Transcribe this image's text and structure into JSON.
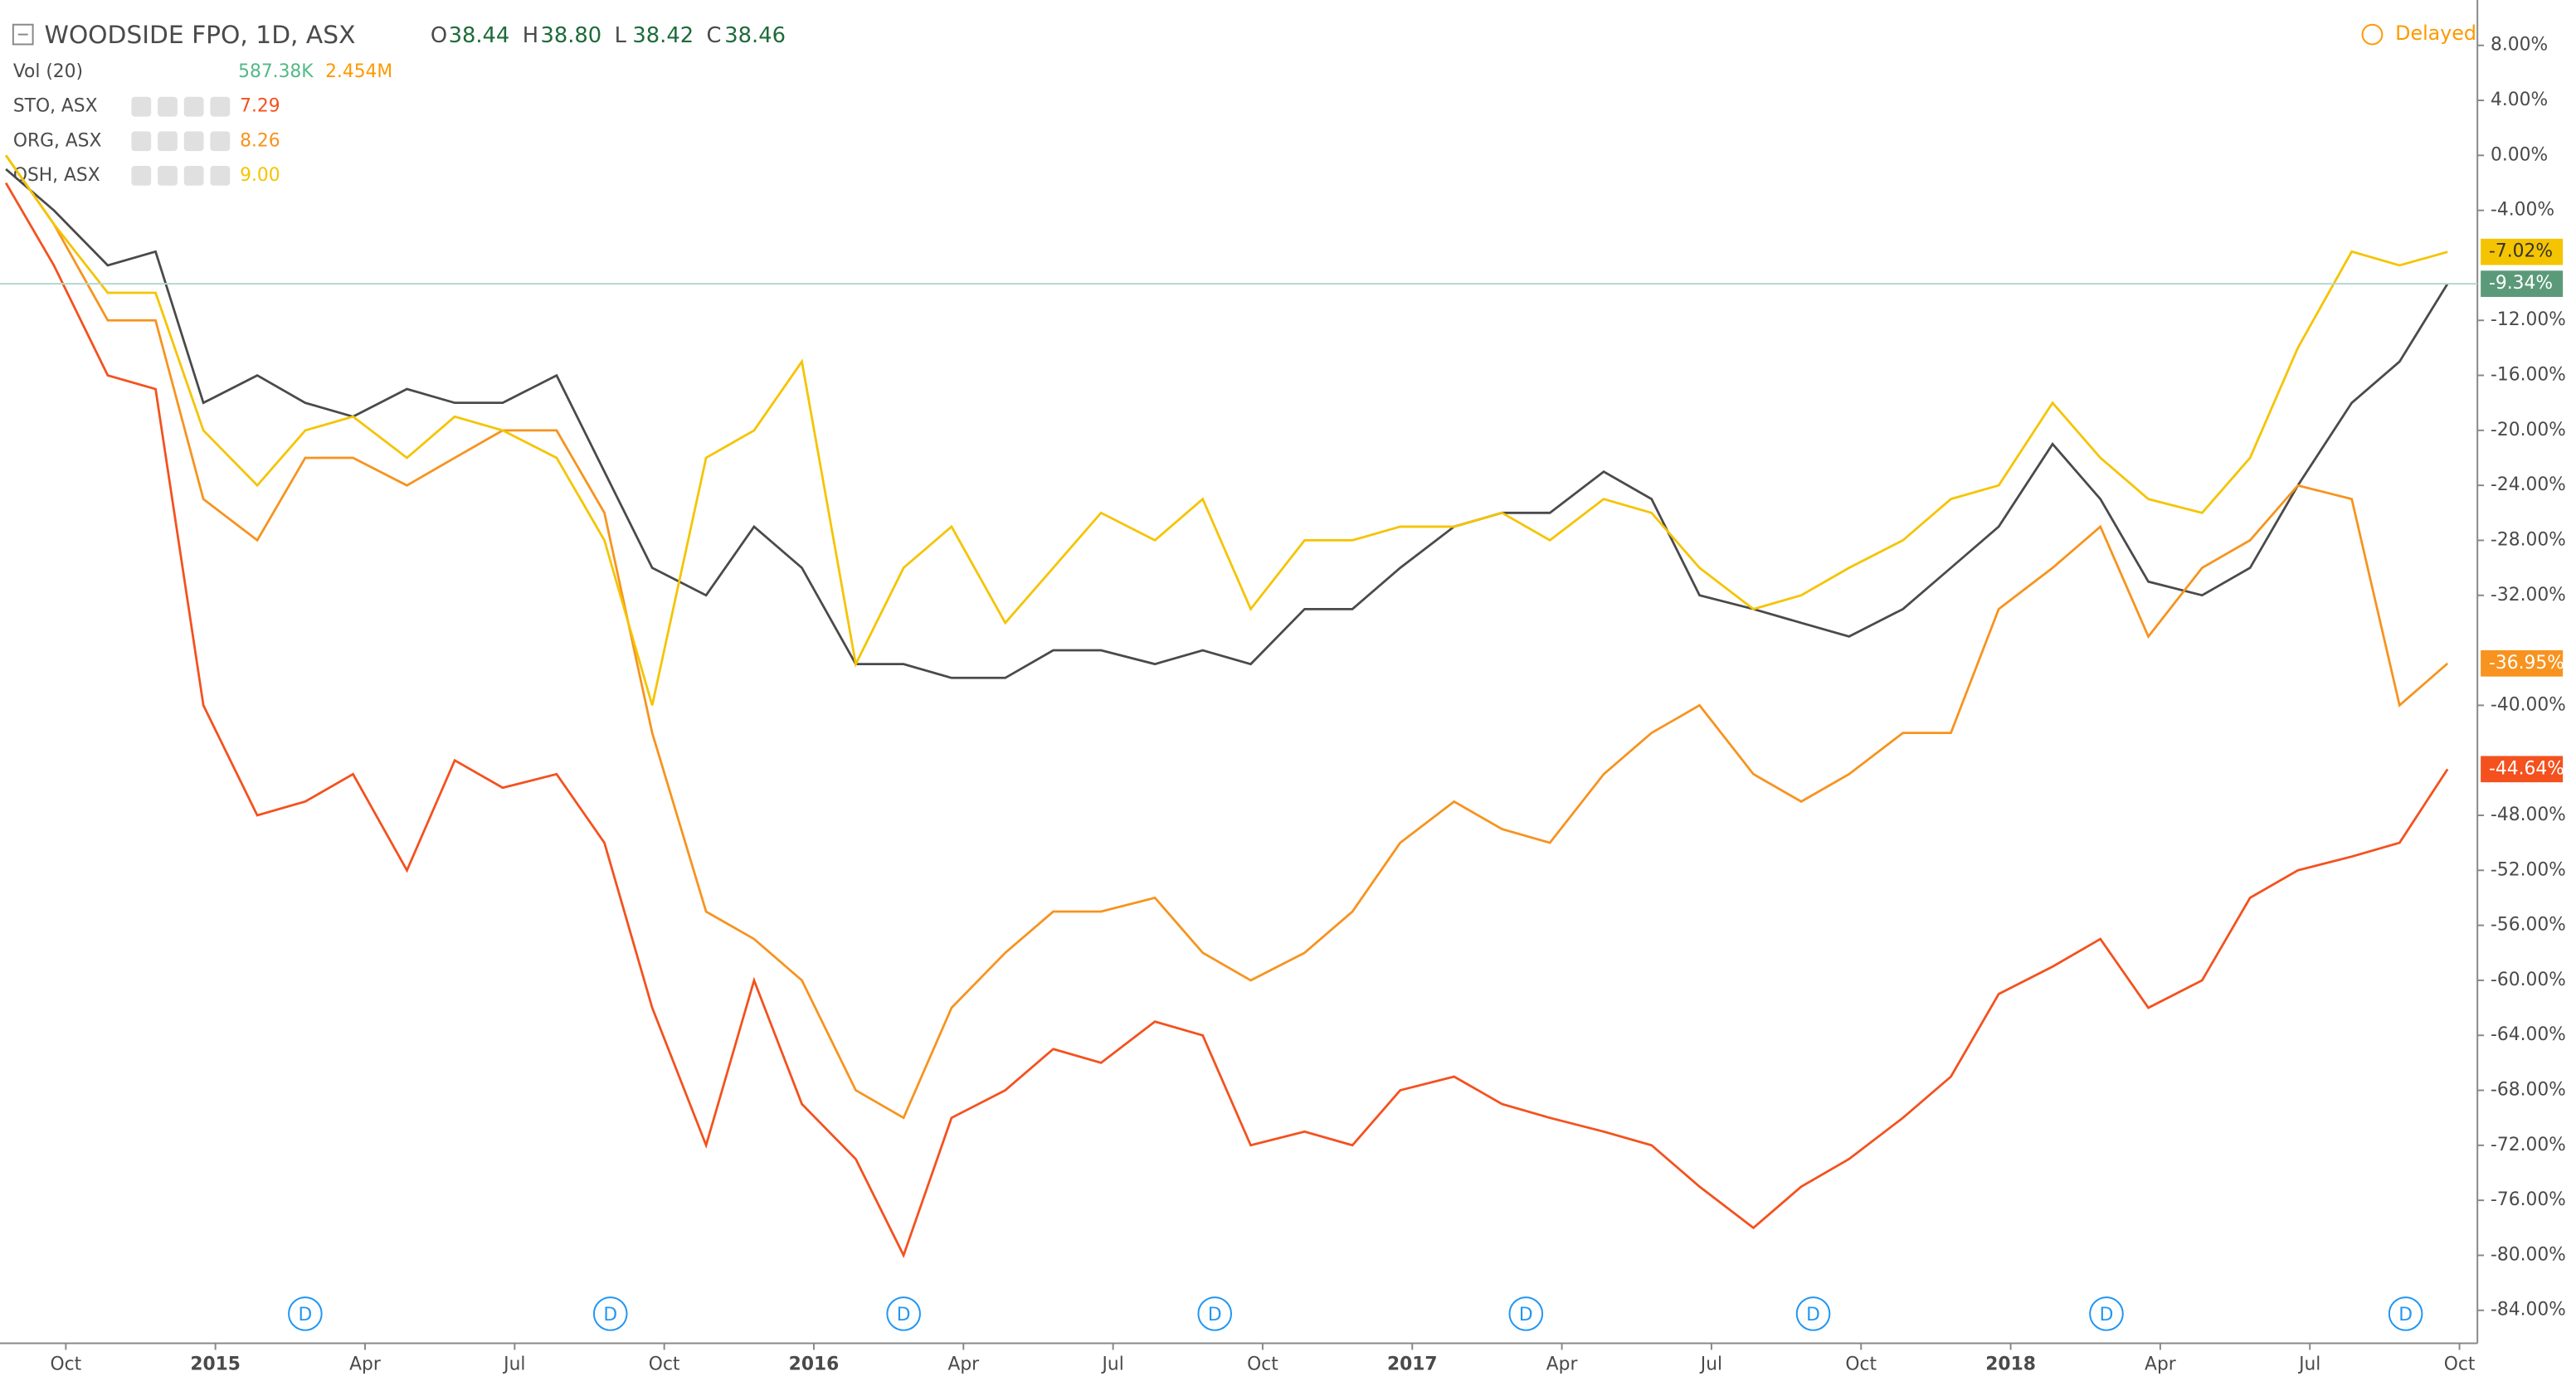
{
  "chart_data": {
    "type": "line",
    "title": "WOODSIDE FPO, 1D, ASX",
    "status": "Delayed",
    "ohlc": [
      {
        "label": "O",
        "value": "38.44"
      },
      {
        "label": "H",
        "value": "38.80"
      },
      {
        "label": "L",
        "value": "38.42"
      },
      {
        "label": "C",
        "value": "38.46"
      }
    ],
    "volume_legend": {
      "name": "Vol (20)",
      "value": "587.38K",
      "average": "2.454M"
    },
    "x": [
      2014.65,
      2014.73,
      2014.82,
      2014.9,
      2014.98,
      2015.07,
      2015.15,
      2015.23,
      2015.32,
      2015.4,
      2015.48,
      2015.57,
      2015.65,
      2015.73,
      2015.82,
      2015.9,
      2015.98,
      2016.07,
      2016.15,
      2016.23,
      2016.32,
      2016.4,
      2016.48,
      2016.57,
      2016.65,
      2016.73,
      2016.82,
      2016.9,
      2016.98,
      2017.07,
      2017.15,
      2017.23,
      2017.32,
      2017.4,
      2017.48,
      2017.57,
      2017.65,
      2017.73,
      2017.82,
      2017.9,
      2017.98,
      2018.07,
      2018.15,
      2018.23,
      2018.32,
      2018.4,
      2018.48,
      2018.57,
      2018.65,
      2018.73
    ],
    "series": [
      {
        "color": "#4a4a4a",
        "badge_color": "#5b9a79",
        "end_label": "-9.34%",
        "values": [
          -1,
          -4,
          -8,
          -7,
          -18,
          -16,
          -18,
          -19,
          -17,
          -18,
          -18,
          -16,
          -23,
          -30,
          -32,
          -27,
          -30,
          -37,
          -37,
          -38,
          -38,
          -36,
          -36,
          -37,
          -36,
          -37,
          -33,
          -33,
          -30,
          -27,
          -26,
          -26,
          -23,
          -25,
          -32,
          -33,
          -34,
          -35,
          -33,
          -30,
          -27,
          -21,
          -25,
          -31,
          -32,
          -30,
          -24,
          -18,
          -15,
          -9.34
        ]
      },
      {
        "name": "STO, ASX",
        "legend_value": "7.29",
        "color": "#f4511e",
        "badge_color": "#f4511e",
        "end_label": "-44.64%",
        "values": [
          -2,
          -8,
          -16,
          -17,
          -40,
          -48,
          -47,
          -45,
          -52,
          -44,
          -46,
          -45,
          -50,
          -62,
          -72,
          -60,
          -69,
          -73,
          -80,
          -70,
          -68,
          -65,
          -66,
          -63,
          -64,
          -72,
          -71,
          -72,
          -68,
          -67,
          -69,
          -70,
          -71,
          -72,
          -75,
          -78,
          -75,
          -73,
          -70,
          -67,
          -61,
          -59,
          -57,
          -62,
          -60,
          -54,
          -52,
          -51,
          -50,
          -44.64
        ]
      },
      {
        "name": "ORG, ASX",
        "legend_value": "8.26",
        "color": "#f7931e",
        "badge_color": "#f7931e",
        "end_label": "-36.95%",
        "values": [
          0,
          -5,
          -12,
          -12,
          -25,
          -28,
          -22,
          -22,
          -24,
          -22,
          -20,
          -20,
          -26,
          -42,
          -55,
          -57,
          -60,
          -68,
          -70,
          -62,
          -58,
          -55,
          -55,
          -54,
          -58,
          -60,
          -58,
          -55,
          -50,
          -47,
          -49,
          -50,
          -45,
          -42,
          -40,
          -45,
          -47,
          -45,
          -42,
          -42,
          -33,
          -30,
          -27,
          -35,
          -30,
          -28,
          -24,
          -25,
          -40,
          -36.95
        ]
      },
      {
        "name": "OSH, ASX",
        "legend_value": "9.00",
        "color": "#f5c400",
        "badge_color": "#f5c400",
        "end_label": "-7.02%",
        "values": [
          0,
          -5,
          -10,
          -10,
          -20,
          -24,
          -20,
          -19,
          -22,
          -19,
          -20,
          -22,
          -28,
          -40,
          -22,
          -20,
          -15,
          -37,
          -30,
          -27,
          -34,
          -30,
          -26,
          -28,
          -25,
          -33,
          -28,
          -28,
          -27,
          -27,
          -26,
          -28,
          -25,
          -26,
          -30,
          -33,
          -32,
          -30,
          -28,
          -25,
          -24,
          -18,
          -22,
          -25,
          -26,
          -22,
          -14,
          -7,
          -8,
          -7.02
        ]
      }
    ],
    "xlim": [
      2014.64,
      2018.78
    ],
    "ylim": [
      -86.4,
      11.3
    ],
    "xticks": [
      {
        "value": 2014.75,
        "label": "Oct"
      },
      2015,
      {
        "value": 2015.25,
        "label": "Apr"
      },
      {
        "value": 2015.5,
        "label": "Jul"
      },
      {
        "value": 2015.75,
        "label": "Oct"
      },
      2016,
      {
        "value": 2016.25,
        "label": "Apr"
      },
      {
        "value": 2016.5,
        "label": "Jul"
      },
      {
        "value": 2016.75,
        "label": "Oct"
      },
      2017,
      {
        "value": 2017.25,
        "label": "Apr"
      },
      {
        "value": 2017.5,
        "label": "Jul"
      },
      {
        "value": 2017.75,
        "label": "Oct"
      },
      2018,
      {
        "value": 2018.25,
        "label": "Apr"
      },
      {
        "value": 2018.5,
        "label": "Jul"
      },
      {
        "value": 2018.75,
        "label": "Oct"
      }
    ],
    "yticks": [
      {
        "value": 8,
        "label": "8.00%"
      },
      {
        "value": 4,
        "label": "4.00%"
      },
      {
        "value": 0,
        "label": "0.00%"
      },
      {
        "value": -4,
        "label": "-4.00%"
      },
      {
        "value": -12,
        "label": "-12.00%"
      },
      {
        "value": -16,
        "label": "-16.00%"
      },
      {
        "value": -20,
        "label": "-20.00%"
      },
      {
        "value": -24,
        "label": "-24.00%"
      },
      {
        "value": -28,
        "label": "-28.00%"
      },
      {
        "value": -32,
        "label": "-32.00%"
      },
      {
        "value": -40,
        "label": "-40.00%"
      },
      {
        "value": -48,
        "label": "-48.00%"
      },
      {
        "value": -52,
        "label": "-52.00%"
      },
      {
        "value": -56,
        "label": "-56.00%"
      },
      {
        "value": -60,
        "label": "-60.00%"
      },
      {
        "value": -64,
        "label": "-64.00%"
      },
      {
        "value": -68,
        "label": "-68.00%"
      },
      {
        "value": -72,
        "label": "-72.00%"
      },
      {
        "value": -76,
        "label": "-76.00%"
      },
      {
        "value": -80,
        "label": "-80.00%"
      },
      {
        "value": -84,
        "label": "-84.00%"
      }
    ],
    "events": [
      {
        "x": 2015.15,
        "label": "D"
      },
      {
        "x": 2015.66,
        "label": "D"
      },
      {
        "x": 2016.15,
        "label": "D"
      },
      {
        "x": 2016.67,
        "label": "D"
      },
      {
        "x": 2017.19,
        "label": "D"
      },
      {
        "x": 2017.67,
        "label": "D"
      },
      {
        "x": 2018.16,
        "label": "D"
      },
      {
        "x": 2018.66,
        "label": "D"
      }
    ]
  }
}
